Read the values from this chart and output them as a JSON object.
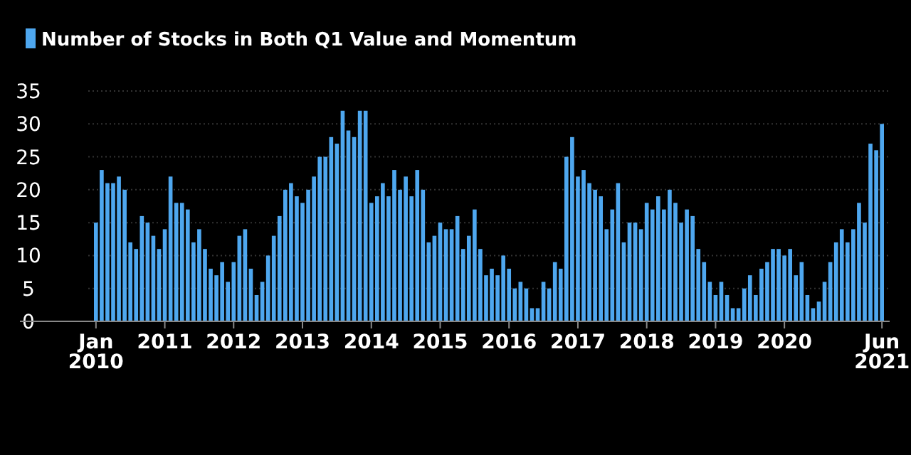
{
  "chart_data": {
    "type": "bar",
    "categories": [
      "Jan 2010",
      null,
      null,
      null,
      null,
      null,
      null,
      null,
      null,
      null,
      null,
      null,
      "2011",
      null,
      null,
      null,
      null,
      null,
      null,
      null,
      null,
      null,
      null,
      null,
      "2012",
      null,
      null,
      null,
      null,
      null,
      null,
      null,
      null,
      null,
      null,
      null,
      "2013",
      null,
      null,
      null,
      null,
      null,
      null,
      null,
      null,
      null,
      null,
      null,
      "2014",
      null,
      null,
      null,
      null,
      null,
      null,
      null,
      null,
      null,
      null,
      null,
      "2015",
      null,
      null,
      null,
      null,
      null,
      null,
      null,
      null,
      null,
      null,
      null,
      "2016",
      null,
      null,
      null,
      null,
      null,
      null,
      null,
      null,
      null,
      null,
      null,
      "2017",
      null,
      null,
      null,
      null,
      null,
      null,
      null,
      null,
      null,
      null,
      null,
      "2018",
      null,
      null,
      null,
      null,
      null,
      null,
      null,
      null,
      null,
      null,
      null,
      "2019",
      null,
      null,
      null,
      null,
      null,
      null,
      null,
      null,
      null,
      null,
      null,
      "2020",
      null,
      null,
      null,
      null,
      null,
      null,
      null,
      null,
      null,
      null,
      null,
      null,
      null,
      null,
      null,
      null,
      "Jun 2021"
    ],
    "series": [
      {
        "name": "Number of Stocks in Both Q1 Value and Momentum",
        "color": "#4ea7ef",
        "values": [
          15,
          23,
          21,
          21,
          22,
          20,
          12,
          11,
          16,
          15,
          13,
          11,
          14,
          22,
          18,
          18,
          17,
          12,
          14,
          11,
          8,
          7,
          9,
          6,
          9,
          13,
          14,
          8,
          4,
          6,
          10,
          13,
          16,
          20,
          21,
          19,
          18,
          20,
          22,
          25,
          25,
          28,
          27,
          32,
          29,
          28,
          32,
          32,
          18,
          19,
          21,
          19,
          23,
          20,
          22,
          19,
          23,
          20,
          12,
          13,
          15,
          14,
          14,
          16,
          11,
          13,
          17,
          11,
          7,
          8,
          7,
          10,
          8,
          5,
          6,
          5,
          2,
          2,
          6,
          5,
          9,
          8,
          25,
          28,
          22,
          23,
          21,
          20,
          19,
          14,
          17,
          21,
          12,
          15,
          15,
          14,
          18,
          17,
          19,
          17,
          20,
          18,
          15,
          17,
          16,
          11,
          9,
          6,
          4,
          6,
          4,
          2,
          2,
          5,
          7,
          4,
          8,
          9,
          11,
          11,
          10,
          11,
          7,
          9,
          4,
          2,
          3,
          6,
          9,
          12,
          14,
          12,
          14,
          18,
          15,
          27,
          26,
          30
        ]
      }
    ],
    "ylim": [
      0,
      35
    ],
    "yticks": [
      0,
      5,
      10,
      15,
      20,
      25,
      30,
      35
    ],
    "grid": "y",
    "legend": "top left"
  }
}
